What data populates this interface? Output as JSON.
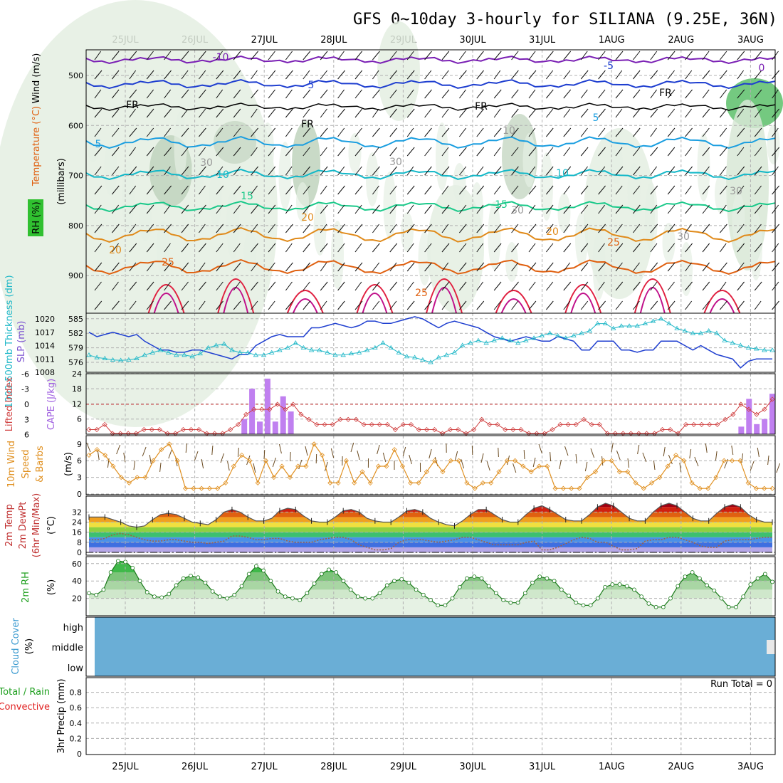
{
  "title": "GFS 0~10day 3-hourly for SILIANA (9.25E, 36N)",
  "dates": [
    "25JUL",
    "26JUL",
    "27JUL",
    "28JUL",
    "29JUL",
    "30JUL",
    "31JUL",
    "1AUG",
    "2AUG",
    "3AUG"
  ],
  "colors": {
    "purple": "#7a1fb4",
    "blue": "#1f3fd0",
    "cyan": "#1a9ee0",
    "teal": "#13b8c8",
    "green": "#1bc98a",
    "orange": "#e08a1a",
    "darkorange": "#e06010",
    "red": "#e02040",
    "magenta": "#c0108a",
    "cape": "#c080f0",
    "li": "#d04040",
    "slp": "#1f3fd0",
    "thk": "#20b8c8",
    "wind10": "#e09020",
    "rhline": "#20a020",
    "cloud": "#6aaed6"
  },
  "chart_data": [
    {
      "type": "heatmap",
      "name": "upper_air",
      "ylabel": "(millibars)",
      "side_labels": [
        "RH (%)",
        "Temperature (°C)",
        "Wind (m/s)"
      ],
      "yticks": [
        500,
        600,
        700,
        800,
        900
      ],
      "contour_labels": [
        "-10",
        "-5",
        "5",
        "FR",
        "5",
        "10",
        "15",
        "20",
        "25",
        "30",
        "5",
        "10",
        "15",
        "20",
        "25",
        "30",
        "-5",
        "FR",
        "FR",
        "25",
        "FR",
        "30",
        "10"
      ]
    },
    {
      "type": "line",
      "name": "slp_thickness",
      "ylabel_left": "1000-500mb Thickness (dm)",
      "ylabel_right": "SLP (mb)",
      "yticks_left": [
        576,
        579,
        582,
        585
      ],
      "yticks_right": [
        1008,
        1011,
        1014,
        1017,
        1020
      ],
      "slp": [
        1017,
        1016,
        1016.5,
        1017,
        1016.5,
        1016,
        1016.5,
        1015,
        1014,
        1013,
        1013,
        1012.5,
        1012.5,
        1013,
        1013,
        1012.5,
        1012,
        1011.5,
        1011,
        1012,
        1012,
        1014,
        1015,
        1016,
        1016.5,
        1016,
        1016,
        1016,
        1018,
        1018,
        1018.5,
        1019,
        1018.5,
        1018,
        1018.5,
        1019.5,
        1019.5,
        1019,
        1019,
        1019.5,
        1020,
        1020.5,
        1020,
        1019,
        1018,
        1019,
        1019.5,
        1019,
        1018.5,
        1018,
        1017,
        1016,
        1015.5,
        1015,
        1015.5,
        1016,
        1015.5,
        1015,
        1015,
        1016,
        1015.5,
        1015,
        1013,
        1013,
        1015,
        1015,
        1015,
        1013,
        1013,
        1012.5,
        1013,
        1013,
        1015,
        1015,
        1015,
        1014,
        1013,
        1014,
        1013,
        1012,
        1011.5,
        1011,
        1009,
        1010.5,
        1011,
        1011,
        1011
      ],
      "thickness": [
        577.5,
        577,
        576.8,
        576.5,
        576.4,
        576.5,
        576.8,
        577.5,
        578,
        578.5,
        578,
        577.5,
        577.5,
        577.2,
        577.8,
        579,
        579.5,
        579.8,
        578.5,
        578,
        578,
        577.5,
        577.5,
        578,
        578.5,
        579,
        580,
        579,
        578.5,
        578.5,
        578,
        577.5,
        577.5,
        577.8,
        578,
        578.5,
        579,
        580,
        579,
        578,
        577.2,
        577,
        576.5,
        576,
        577,
        577.5,
        578,
        579.5,
        580,
        580.5,
        580,
        580.5,
        581,
        580.5,
        580,
        580.5,
        581,
        581.5,
        582,
        581.5,
        581,
        581.5,
        582,
        582.5,
        584,
        584,
        583,
        583.5,
        583.5,
        583.5,
        584,
        584.5,
        585,
        584,
        583,
        582.5,
        582,
        582,
        582.5,
        582,
        580.5,
        580,
        579.5,
        579,
        578.8,
        578.5,
        578.5
      ]
    },
    {
      "type": "bar",
      "name": "cape_li",
      "ylabel_left": "Lifted Index",
      "ylabel_right": "CAPE (J/kg)",
      "yticks_left": [
        "-6",
        "-3",
        "0",
        "3",
        "6"
      ],
      "yticks_right": [
        6,
        12,
        18,
        24
      ],
      "cape": [
        0,
        0,
        0,
        0,
        0,
        0,
        0,
        0,
        0,
        0,
        0,
        0,
        0,
        0,
        0,
        0,
        0,
        0,
        0,
        0,
        6,
        18,
        5,
        22,
        5,
        15,
        9,
        0,
        0,
        0,
        0,
        0,
        0,
        0,
        0,
        0,
        0,
        0,
        0,
        0,
        0,
        0,
        0,
        0,
        0,
        0,
        0,
        0,
        0,
        0,
        0,
        0,
        0,
        0,
        0,
        0,
        0,
        0,
        0,
        0,
        0,
        0,
        0,
        0,
        0,
        0,
        0,
        0,
        0,
        0,
        0,
        0,
        0,
        0,
        0,
        0,
        0,
        0,
        0,
        0,
        0,
        0,
        0,
        0,
        3,
        14,
        4,
        6,
        16
      ],
      "lifted_index": [
        5,
        5,
        4,
        6,
        6,
        6,
        6,
        5,
        5,
        5,
        6,
        6,
        5,
        5,
        5,
        6,
        6,
        6,
        5,
        4,
        2,
        1,
        1,
        1,
        0,
        1,
        0,
        2,
        3,
        4,
        4,
        4,
        3,
        3,
        3,
        4,
        4,
        4,
        4,
        5,
        4,
        4,
        5,
        5,
        5,
        6,
        5,
        5,
        6,
        5,
        3,
        4,
        4,
        5,
        5,
        5,
        6,
        6,
        6,
        5,
        4,
        4,
        4,
        3,
        4,
        4,
        6,
        6,
        6,
        6,
        6,
        6,
        6,
        5,
        5,
        6,
        4,
        4,
        4,
        4,
        4,
        3,
        2,
        0,
        1,
        2,
        1,
        -1
      ]
    },
    {
      "type": "line",
      "name": "wind10m",
      "ylabel": "10m Wind Speed & Barbs (m/s)",
      "yticks": [
        0,
        3,
        6,
        9
      ],
      "speed": [
        7,
        8,
        7,
        5,
        3,
        2,
        3,
        3,
        6,
        8,
        9,
        6,
        1,
        1,
        1,
        1,
        1,
        2,
        5,
        7,
        6,
        2,
        6,
        3,
        5,
        3,
        5,
        5,
        9,
        7,
        2,
        2,
        6,
        2,
        4,
        2,
        5,
        5,
        8,
        5,
        2,
        2,
        4,
        6,
        4,
        6,
        6,
        2,
        1,
        2,
        2,
        4,
        6,
        6,
        5,
        4,
        5,
        5,
        1,
        1,
        1,
        1,
        3,
        4,
        6,
        6,
        4,
        4,
        2,
        1,
        2,
        3,
        5,
        7,
        6,
        2,
        1,
        1,
        3,
        6,
        6,
        6,
        2,
        1,
        1,
        1
      ]
    },
    {
      "type": "area",
      "name": "temp2m",
      "ylabel": "2m Temp 2m DewPt (6hr Min/Max) (°C)",
      "yticks": [
        0,
        8,
        16,
        24,
        32
      ],
      "temp": [
        28,
        28,
        28,
        26,
        24,
        21,
        20,
        21,
        26,
        30,
        31,
        30,
        27,
        24,
        23,
        22,
        26,
        32,
        34,
        32,
        28,
        25,
        25,
        27,
        33,
        35,
        34,
        29,
        25,
        24,
        24,
        28,
        33,
        34,
        32,
        27,
        25,
        24,
        24,
        28,
        33,
        34,
        32,
        27,
        24,
        22,
        21,
        25,
        30,
        34,
        34,
        30,
        26,
        24,
        24,
        30,
        35,
        37,
        34,
        30,
        26,
        25,
        25,
        30,
        36,
        39,
        37,
        32,
        27,
        25,
        25,
        32,
        37,
        39,
        37,
        32,
        27,
        25,
        25,
        31,
        36,
        38,
        36,
        30,
        26,
        24,
        24
      ],
      "dewpt": [
        10,
        10,
        11,
        14,
        15,
        14,
        12,
        10,
        9,
        9,
        10,
        10,
        9,
        8,
        8,
        7,
        8,
        9,
        13,
        13,
        12,
        10,
        10,
        11,
        11,
        9,
        8,
        8,
        8,
        10,
        11,
        12,
        12,
        10,
        6,
        4,
        2,
        2,
        3,
        8,
        10,
        10,
        10,
        9,
        8,
        9,
        10,
        12,
        12,
        10,
        8,
        6,
        6,
        6,
        6,
        8,
        9,
        2,
        2,
        4,
        7,
        10,
        12,
        11,
        8,
        8,
        5,
        2,
        2,
        3,
        9,
        10,
        10,
        12,
        12,
        10,
        8,
        5,
        4,
        4,
        9,
        10,
        10,
        10,
        11,
        12,
        12
      ]
    },
    {
      "type": "area",
      "name": "rh2m",
      "ylabel": "2m RH (%)",
      "yticks": [
        20,
        40,
        60
      ],
      "rh": [
        26,
        24,
        30,
        50,
        63,
        62,
        55,
        40,
        27,
        22,
        21,
        25,
        35,
        43,
        46,
        44,
        38,
        28,
        22,
        20,
        24,
        34,
        48,
        57,
        52,
        40,
        28,
        22,
        20,
        18,
        26,
        37,
        48,
        53,
        50,
        40,
        30,
        22,
        20,
        20,
        26,
        35,
        40,
        42,
        38,
        30,
        24,
        18,
        12,
        12,
        20,
        33,
        43,
        45,
        43,
        34,
        26,
        18,
        15,
        15,
        26,
        38,
        45,
        43,
        40,
        30,
        23,
        15,
        12,
        12,
        20,
        33,
        36,
        36,
        34,
        30,
        22,
        14,
        10,
        10,
        20,
        34,
        45,
        50,
        43,
        35,
        29,
        20,
        10,
        10,
        22,
        36,
        43,
        48,
        39
      ]
    },
    {
      "type": "heatmap",
      "name": "cloud_cover",
      "ylabel": "Cloud Cover (%)",
      "yticks": [
        "high",
        "middle",
        "low"
      ]
    },
    {
      "type": "bar",
      "name": "precip",
      "ylabel": "3hr Precip (mm)",
      "side_labels": [
        "Total / Rain",
        "Convective"
      ],
      "yticks": [
        "0",
        "0.2",
        "0.4",
        "0.6",
        "0.8"
      ],
      "run_total": "Run Total = 0"
    }
  ]
}
